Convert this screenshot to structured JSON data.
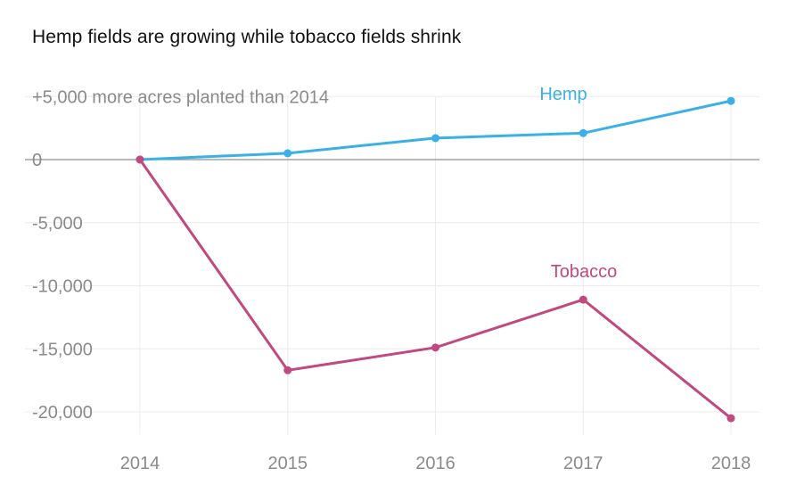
{
  "chart_data": {
    "type": "line",
    "title": "Hemp fields are growing while tobacco fields shrink",
    "ylabel": "+5,000 more acres planted than 2014",
    "xlabel": "",
    "x": [
      "2014",
      "2015",
      "2016",
      "2017",
      "2018"
    ],
    "yticks": [
      {
        "value": 0,
        "label": "0"
      },
      {
        "value": -5000,
        "label": "-5,000"
      },
      {
        "value": -10000,
        "label": "-10,000"
      },
      {
        "value": -15000,
        "label": "-15,000"
      },
      {
        "value": -20000,
        "label": "-20,000"
      }
    ],
    "ylim": [
      -21800,
      5000
    ],
    "grid": true,
    "series": [
      {
        "name": "Hemp",
        "color": "#3ab0e6",
        "values": [
          0,
          500,
          1700,
          2100,
          4650
        ]
      },
      {
        "name": "Tobacco",
        "color": "#c0497f",
        "values": [
          0,
          -16700,
          -14900,
          -11100,
          -20500
        ]
      }
    ]
  }
}
